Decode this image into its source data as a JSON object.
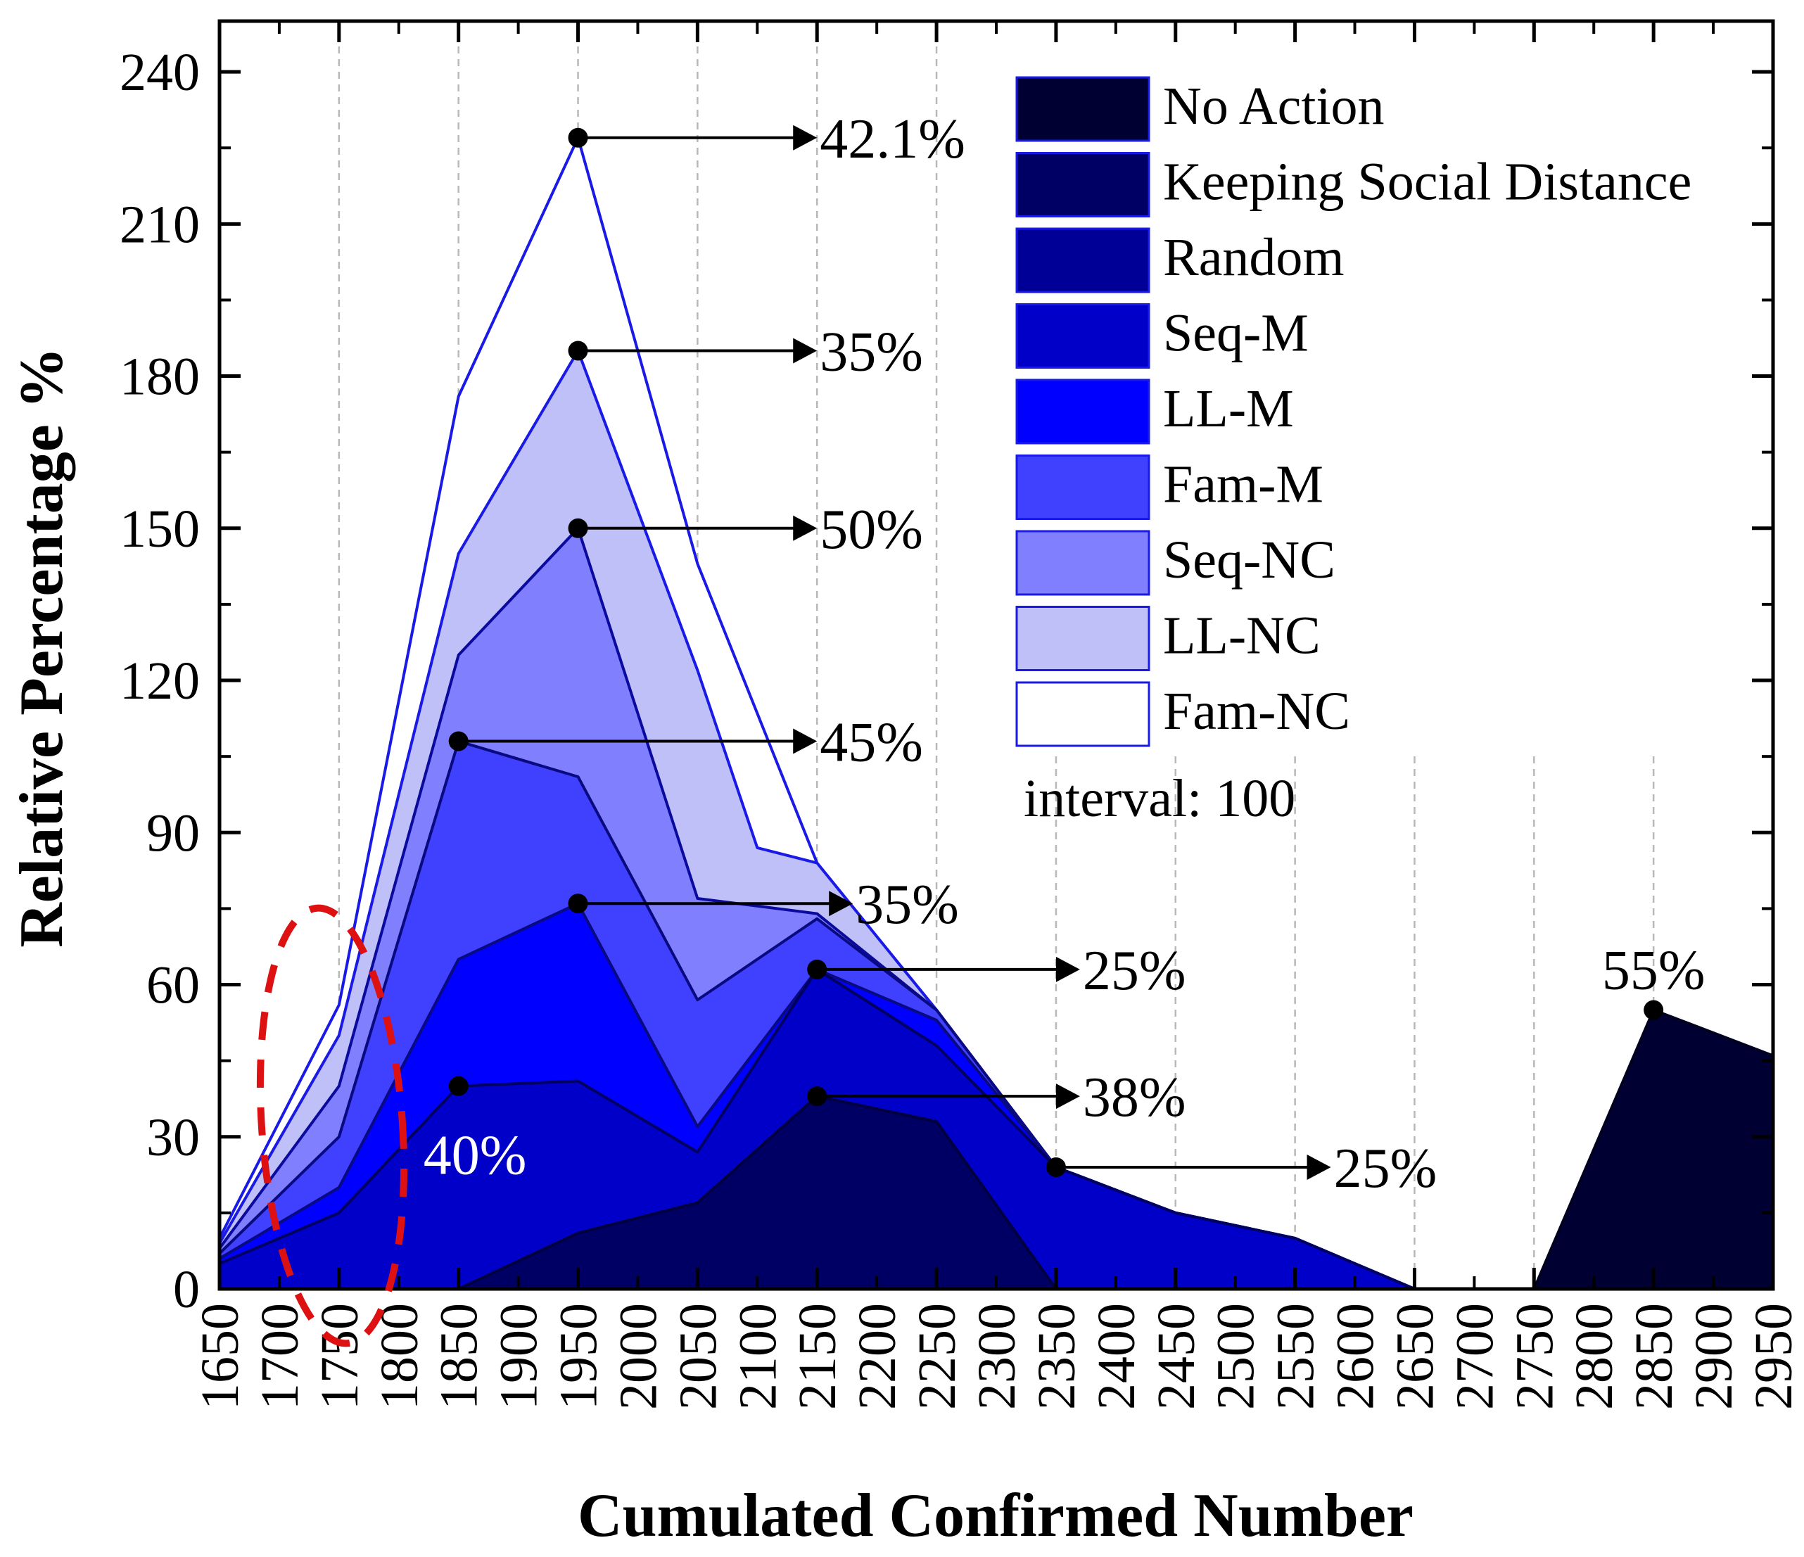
{
  "chart_data": {
    "type": "area",
    "title": "",
    "xlabel": "Cumulated Confirmed Number",
    "ylabel": "Relative Percentage %",
    "xlim": [
      1650,
      2950
    ],
    "ylim": [
      0,
      250
    ],
    "x_ticks": [
      1650,
      1700,
      1750,
      1800,
      1850,
      1900,
      1950,
      2000,
      2050,
      2100,
      2150,
      2200,
      2250,
      2300,
      2350,
      2400,
      2450,
      2500,
      2550,
      2600,
      2650,
      2700,
      2750,
      2800,
      2850,
      2900,
      2950
    ],
    "x_tick_labels": [
      "1650",
      "1700",
      "1750",
      "1800",
      "1850",
      "1900",
      "1950",
      "2000",
      "2050",
      "2100",
      "2150",
      "2200",
      "2250",
      "2300",
      "2350",
      "2400",
      "2450",
      "2500",
      "2550",
      "2600",
      "2650",
      "2700",
      "2750",
      "2800",
      "2850",
      "2900",
      "2950"
    ],
    "y_ticks": [
      0,
      30,
      60,
      90,
      120,
      150,
      180,
      210,
      240
    ],
    "y_tick_labels": [
      "0",
      "30",
      "60",
      "90",
      "120",
      "150",
      "180",
      "210",
      "240"
    ],
    "interval_note": "interval: 100",
    "series": [
      {
        "name": "Fam-NC",
        "color": "#ffffff",
        "stroke": "#1a1ae6",
        "points": [
          [
            1650,
            10
          ],
          [
            1750,
            56
          ],
          [
            1850,
            176
          ],
          [
            1950,
            227
          ],
          [
            2050,
            143
          ],
          [
            2150,
            84
          ],
          [
            2250,
            55
          ],
          [
            2350,
            24
          ],
          [
            2450,
            15
          ],
          [
            2550,
            10
          ],
          [
            2650,
            0
          ],
          [
            2750,
            0
          ],
          [
            2850,
            0
          ],
          [
            2950,
            0
          ]
        ]
      },
      {
        "name": "LL-NC",
        "color": "#c0c0f8",
        "stroke": "#1a1ae6",
        "points": [
          [
            1650,
            9
          ],
          [
            1750,
            50
          ],
          [
            1850,
            145
          ],
          [
            1950,
            185
          ],
          [
            2050,
            122
          ],
          [
            2100,
            87
          ],
          [
            2150,
            84
          ],
          [
            2250,
            55
          ],
          [
            2350,
            24
          ],
          [
            2450,
            15
          ],
          [
            2550,
            10
          ],
          [
            2650,
            0
          ],
          [
            2750,
            0
          ],
          [
            2850,
            0
          ],
          [
            2950,
            0
          ]
        ]
      },
      {
        "name": "Seq-NC",
        "color": "#8080ff",
        "stroke": "#0a0a9e",
        "points": [
          [
            1650,
            8
          ],
          [
            1750,
            40
          ],
          [
            1850,
            125
          ],
          [
            1950,
            150
          ],
          [
            2050,
            77
          ],
          [
            2150,
            74
          ],
          [
            2250,
            55
          ],
          [
            2350,
            24
          ],
          [
            2450,
            15
          ],
          [
            2550,
            10
          ],
          [
            2650,
            0
          ],
          [
            2750,
            0
          ],
          [
            2850,
            0
          ],
          [
            2950,
            0
          ]
        ]
      },
      {
        "name": "Fam-M",
        "color": "#4040ff",
        "stroke": "#0a0a80",
        "points": [
          [
            1650,
            7
          ],
          [
            1750,
            30
          ],
          [
            1850,
            108
          ],
          [
            1950,
            101
          ],
          [
            2050,
            57
          ],
          [
            2150,
            73
          ],
          [
            2250,
            55
          ],
          [
            2350,
            24
          ],
          [
            2450,
            15
          ],
          [
            2550,
            10
          ],
          [
            2650,
            0
          ],
          [
            2750,
            0
          ],
          [
            2850,
            0
          ],
          [
            2950,
            0
          ]
        ]
      },
      {
        "name": "LL-M",
        "color": "#0000ff",
        "stroke": "#0a0a80",
        "points": [
          [
            1650,
            6
          ],
          [
            1750,
            20
          ],
          [
            1850,
            65
          ],
          [
            1950,
            76
          ],
          [
            2050,
            32
          ],
          [
            2150,
            63
          ],
          [
            2250,
            53
          ],
          [
            2350,
            24
          ],
          [
            2450,
            15
          ],
          [
            2550,
            10
          ],
          [
            2650,
            0
          ],
          [
            2750,
            0
          ],
          [
            2850,
            0
          ],
          [
            2950,
            0
          ]
        ]
      },
      {
        "name": "Seq-M",
        "color": "#0000c8",
        "stroke": "#000060",
        "points": [
          [
            1650,
            5
          ],
          [
            1750,
            15
          ],
          [
            1850,
            40
          ],
          [
            1950,
            41
          ],
          [
            2050,
            27
          ],
          [
            2150,
            63
          ],
          [
            2250,
            48
          ],
          [
            2350,
            24
          ],
          [
            2450,
            15
          ],
          [
            2550,
            10
          ],
          [
            2650,
            0
          ],
          [
            2750,
            0
          ],
          [
            2850,
            0
          ],
          [
            2950,
            0
          ]
        ]
      },
      {
        "name": "Random",
        "color": "#000096",
        "stroke": "#000050",
        "points": [
          [
            1650,
            0
          ],
          [
            1850,
            0
          ],
          [
            1950,
            11
          ],
          [
            2050,
            17
          ],
          [
            2150,
            38
          ],
          [
            2250,
            33
          ],
          [
            2350,
            0
          ],
          [
            2650,
            0
          ],
          [
            2750,
            0
          ],
          [
            2850,
            0
          ],
          [
            2950,
            0
          ]
        ]
      },
      {
        "name": "Keeping Social Distance",
        "color": "#000064",
        "stroke": "#000040",
        "points": [
          [
            1650,
            0
          ],
          [
            1850,
            0
          ],
          [
            1950,
            11
          ],
          [
            2050,
            17
          ],
          [
            2150,
            38
          ],
          [
            2250,
            33
          ],
          [
            2350,
            0
          ],
          [
            2650,
            0
          ],
          [
            2750,
            0
          ],
          [
            2850,
            0
          ],
          [
            2950,
            0
          ]
        ]
      },
      {
        "name": "No Action",
        "color": "#000033",
        "stroke": "#000020",
        "points": [
          [
            1650,
            0
          ],
          [
            2750,
            0
          ],
          [
            2850,
            55
          ],
          [
            2950,
            46
          ]
        ]
      }
    ],
    "legend": [
      {
        "name": "No Action",
        "color": "#000033"
      },
      {
        "name": "Keeping Social Distance",
        "color": "#000064"
      },
      {
        "name": "Random",
        "color": "#000096"
      },
      {
        "name": "Seq-M",
        "color": "#0000c8"
      },
      {
        "name": "LL-M",
        "color": "#0000ff"
      },
      {
        "name": "Fam-M",
        "color": "#4040ff"
      },
      {
        "name": "Seq-NC",
        "color": "#8080ff"
      },
      {
        "name": "LL-NC",
        "color": "#c0c0f8"
      },
      {
        "name": "Fam-NC",
        "color": "#ffffff"
      }
    ],
    "annotations": [
      {
        "label": "42.1%",
        "x": 1950,
        "y": 227,
        "to_x": 2150,
        "arrow": true
      },
      {
        "label": "35%",
        "x": 1950,
        "y": 185,
        "to_x": 2150,
        "arrow": true
      },
      {
        "label": "50%",
        "x": 1950,
        "y": 150,
        "to_x": 2150,
        "arrow": true
      },
      {
        "label": "45%",
        "x": 1850,
        "y": 108,
        "to_x": 2150,
        "arrow": true
      },
      {
        "label": "35%",
        "x": 1950,
        "y": 76,
        "to_x": 2180,
        "arrow": true
      },
      {
        "label": "25%",
        "x": 2150,
        "y": 63,
        "to_x": 2370,
        "arrow": true
      },
      {
        "label": "38%",
        "x": 2150,
        "y": 38,
        "to_x": 2370,
        "arrow": true
      },
      {
        "label": "25%",
        "x": 2350,
        "y": 24,
        "to_x": 2580,
        "arrow": true
      },
      {
        "label": "55%",
        "x": 2850,
        "y": 55,
        "arrow": false
      },
      {
        "label": "40%",
        "x": 1850,
        "y": 40,
        "arrow": false
      }
    ]
  }
}
